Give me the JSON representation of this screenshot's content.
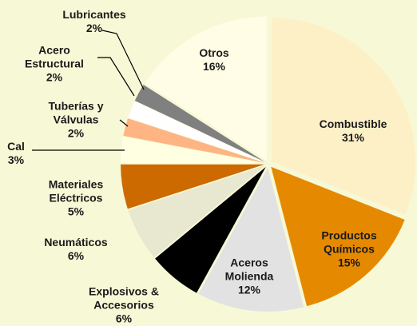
{
  "chart_data": {
    "type": "pie",
    "categories": [
      "Combustible",
      "Productos Químicos",
      "Aceros Molienda",
      "Explosivos & Accesorios",
      "Neumáticos",
      "Materiales Eléctricos",
      "Cal",
      "Tuberías y Válvulas",
      "Acero Estructural",
      "Lubricantes",
      "Otros"
    ],
    "values": [
      31,
      15,
      12,
      6,
      6,
      5,
      3,
      2,
      2,
      2,
      16
    ],
    "value_labels": [
      "31%",
      "15%",
      "12%",
      "6%",
      "6%",
      "5%",
      "3%",
      "2%",
      "2%",
      "2%",
      "16%"
    ],
    "colors": [
      "#fdf0c6",
      "#e58a00",
      "#e2e2e2",
      "#000000",
      "#e8e8d0",
      "#cc6a00",
      "#ffffe2",
      "#ffb484",
      "#ffffff",
      "#808080",
      "#fffde6"
    ]
  }
}
